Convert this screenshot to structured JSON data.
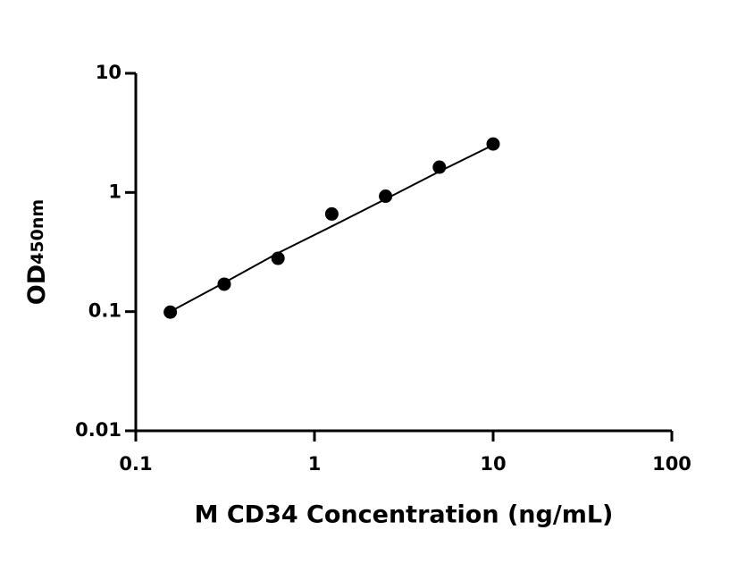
{
  "chart_data": {
    "type": "scatter",
    "x_label": "M CD34 Concentration (ng/mL)",
    "y_label": "OD",
    "y_label_sub": "450nm",
    "x": [
      0.156,
      0.3125,
      0.625,
      1.25,
      2.5,
      5,
      10
    ],
    "values": [
      0.099,
      0.17,
      0.28,
      0.66,
      0.93,
      1.63,
      2.55
    ],
    "color": "#000000",
    "fit": {
      "x": [
        0.156,
        0.3125,
        0.625,
        1.25,
        2.5,
        5,
        10
      ],
      "values": [
        0.1,
        0.175,
        0.31,
        0.52,
        0.88,
        1.5,
        2.5
      ]
    },
    "xlim": [
      0.1,
      100
    ],
    "ylim": [
      0.01,
      10
    ],
    "xticks": [
      0.1,
      1,
      10,
      100
    ],
    "yticks": [
      0.01,
      0.1,
      1,
      10
    ],
    "xlog": true,
    "ylog": true,
    "grid": false
  }
}
